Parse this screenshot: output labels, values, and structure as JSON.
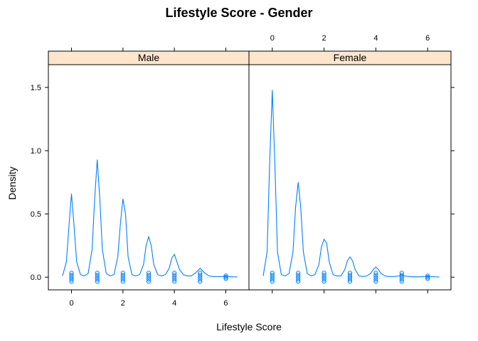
{
  "chart_data": {
    "type": "line",
    "title": "Lifestyle Score - Gender",
    "xlabel": "Lifestyle Score",
    "ylabel": "Density",
    "xlim": [
      -0.9,
      6.9
    ],
    "ylim": [
      -0.1,
      1.68
    ],
    "x_ticks": [
      0,
      2,
      4,
      6
    ],
    "y_ticks": [
      0.0,
      0.5,
      1.0,
      1.5
    ],
    "y_tick_labels": [
      "0.0",
      "0.5",
      "1.0",
      "1.5"
    ],
    "strip_color": "#ffe5cc",
    "line_color": "#0080ff",
    "panels": [
      {
        "name": "Male",
        "x": [
          -0.35,
          -0.2,
          -0.1,
          0,
          0.1,
          0.2,
          0.35,
          0.5,
          0.65,
          0.8,
          0.9,
          1,
          1.1,
          1.2,
          1.35,
          1.5,
          1.65,
          1.8,
          1.9,
          2,
          2.1,
          2.2,
          2.35,
          2.5,
          2.65,
          2.8,
          2.9,
          3,
          3.1,
          3.2,
          3.35,
          3.5,
          3.65,
          3.8,
          3.9,
          4,
          4.1,
          4.2,
          4.35,
          4.5,
          4.65,
          4.8,
          4.9,
          5,
          5.1,
          5.2,
          5.35,
          5.5,
          5.7,
          5.9,
          6,
          6.1,
          6.3,
          6.45
        ],
        "y": [
          0.01,
          0.12,
          0.4,
          0.66,
          0.4,
          0.12,
          0.02,
          0.01,
          0.03,
          0.22,
          0.62,
          0.93,
          0.62,
          0.22,
          0.03,
          0.01,
          0.02,
          0.16,
          0.42,
          0.62,
          0.5,
          0.16,
          0.02,
          0.01,
          0.02,
          0.1,
          0.25,
          0.32,
          0.25,
          0.1,
          0.02,
          0.01,
          0.02,
          0.07,
          0.15,
          0.18,
          0.12,
          0.06,
          0.02,
          0.01,
          0.01,
          0.03,
          0.05,
          0.07,
          0.05,
          0.03,
          0.01,
          0.005,
          0.005,
          0.005,
          0.01,
          0.005,
          0.003,
          0.002
        ],
        "points": [
          0,
          1,
          2,
          3,
          4,
          5,
          6
        ]
      },
      {
        "name": "Female",
        "x": [
          -0.35,
          -0.2,
          -0.1,
          0,
          0.1,
          0.2,
          0.35,
          0.5,
          0.65,
          0.8,
          0.9,
          1,
          1.1,
          1.2,
          1.35,
          1.5,
          1.65,
          1.8,
          1.9,
          2,
          2.1,
          2.2,
          2.35,
          2.5,
          2.65,
          2.8,
          2.9,
          3,
          3.1,
          3.2,
          3.35,
          3.5,
          3.65,
          3.8,
          3.9,
          4,
          4.1,
          4.2,
          4.35,
          4.5,
          4.7,
          4.9,
          5,
          5.1,
          5.3,
          5.5,
          5.7,
          5.9,
          6,
          6.1,
          6.3,
          6.45
        ],
        "y": [
          0.01,
          0.2,
          0.9,
          1.48,
          0.9,
          0.2,
          0.02,
          0.01,
          0.03,
          0.2,
          0.55,
          0.75,
          0.55,
          0.2,
          0.03,
          0.01,
          0.02,
          0.1,
          0.24,
          0.3,
          0.27,
          0.12,
          0.02,
          0.01,
          0.01,
          0.06,
          0.13,
          0.16,
          0.13,
          0.06,
          0.01,
          0.005,
          0.01,
          0.03,
          0.06,
          0.08,
          0.06,
          0.03,
          0.01,
          0.005,
          0.005,
          0.01,
          0.02,
          0.01,
          0.005,
          0.003,
          0.003,
          0.005,
          0.01,
          0.005,
          0.003,
          0.002
        ],
        "points": [
          0,
          1,
          2,
          3,
          4,
          5,
          6
        ]
      }
    ]
  }
}
